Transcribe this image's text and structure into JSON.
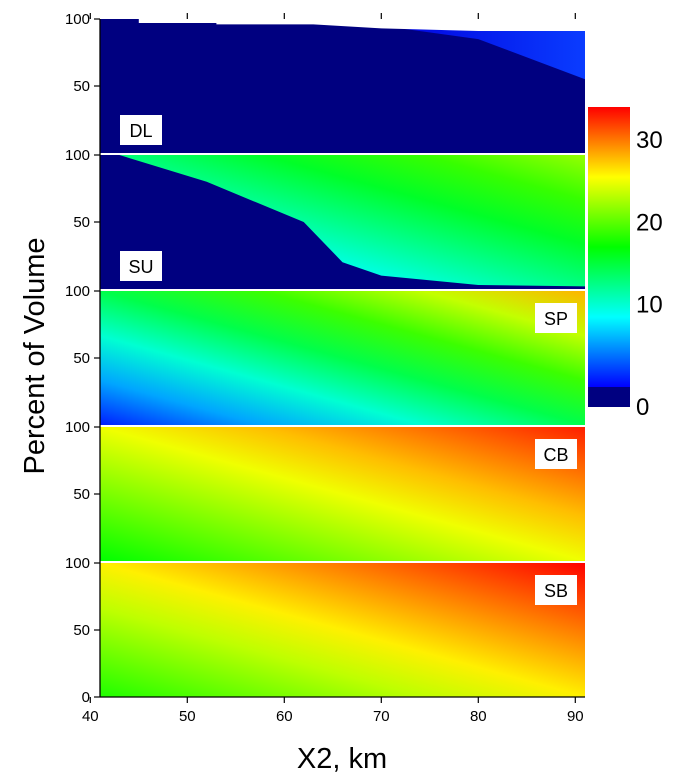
{
  "chart_data": {
    "type": "heatmap",
    "xlabel": "X2, km",
    "ylabel": "Percent of Volume",
    "xlim": [
      41,
      91
    ],
    "ylim": [
      0,
      100
    ],
    "x_ticks": [
      "40",
      "50",
      "60",
      "70",
      "80",
      "90"
    ],
    "y_ticks": [
      "0",
      "50",
      "100"
    ],
    "colorbar": {
      "ticks": [
        "0",
        "10",
        "20",
        "30"
      ],
      "range": [
        0,
        34
      ],
      "colors": [
        "#0000FF",
        "#00FFFF",
        "#00FF00",
        "#FFFF00",
        "#FF0000"
      ],
      "below_threshold_color": "#000080"
    },
    "panels": [
      {
        "label": "DL",
        "top_boundary": [
          [
            41,
            100
          ],
          [
            45,
            100
          ],
          [
            45,
            97
          ],
          [
            53,
            97
          ],
          [
            53,
            96
          ],
          [
            63,
            96
          ],
          [
            70,
            93
          ],
          [
            80,
            91
          ],
          [
            91,
            91
          ]
        ],
        "contours": [
          [
            [
              41,
              0
            ],
            [
              60,
              0
            ],
            [
              70,
              95
            ],
            [
              80,
              85
            ],
            [
              91,
              55
            ]
          ]
        ],
        "contour_values": [
          3
        ]
      },
      {
        "label": "SU",
        "top_boundary": [
          [
            41,
            100
          ],
          [
            91,
            100
          ]
        ],
        "contours": [
          [
            [
              43,
              100
            ],
            [
              52,
              80
            ],
            [
              62,
              50
            ],
            [
              66,
              20
            ],
            [
              70,
              10
            ],
            [
              80,
              3
            ],
            [
              91,
              2
            ]
          ]
        ],
        "contour_values": [
          3
        ],
        "field": {
          "min": 3,
          "max": 22
        }
      },
      {
        "label": "SP",
        "top_boundary": [
          [
            41,
            100
          ],
          [
            91,
            100
          ]
        ],
        "field": {
          "min": 1,
          "max": 28
        }
      },
      {
        "label": "CB",
        "top_boundary": [
          [
            41,
            100
          ],
          [
            91,
            100
          ]
        ],
        "field": {
          "min": 17,
          "max": 33
        }
      },
      {
        "label": "SB",
        "top_boundary": [
          [
            41,
            100
          ],
          [
            91,
            100
          ]
        ],
        "field": {
          "min": 18,
          "max": 34
        }
      }
    ]
  }
}
